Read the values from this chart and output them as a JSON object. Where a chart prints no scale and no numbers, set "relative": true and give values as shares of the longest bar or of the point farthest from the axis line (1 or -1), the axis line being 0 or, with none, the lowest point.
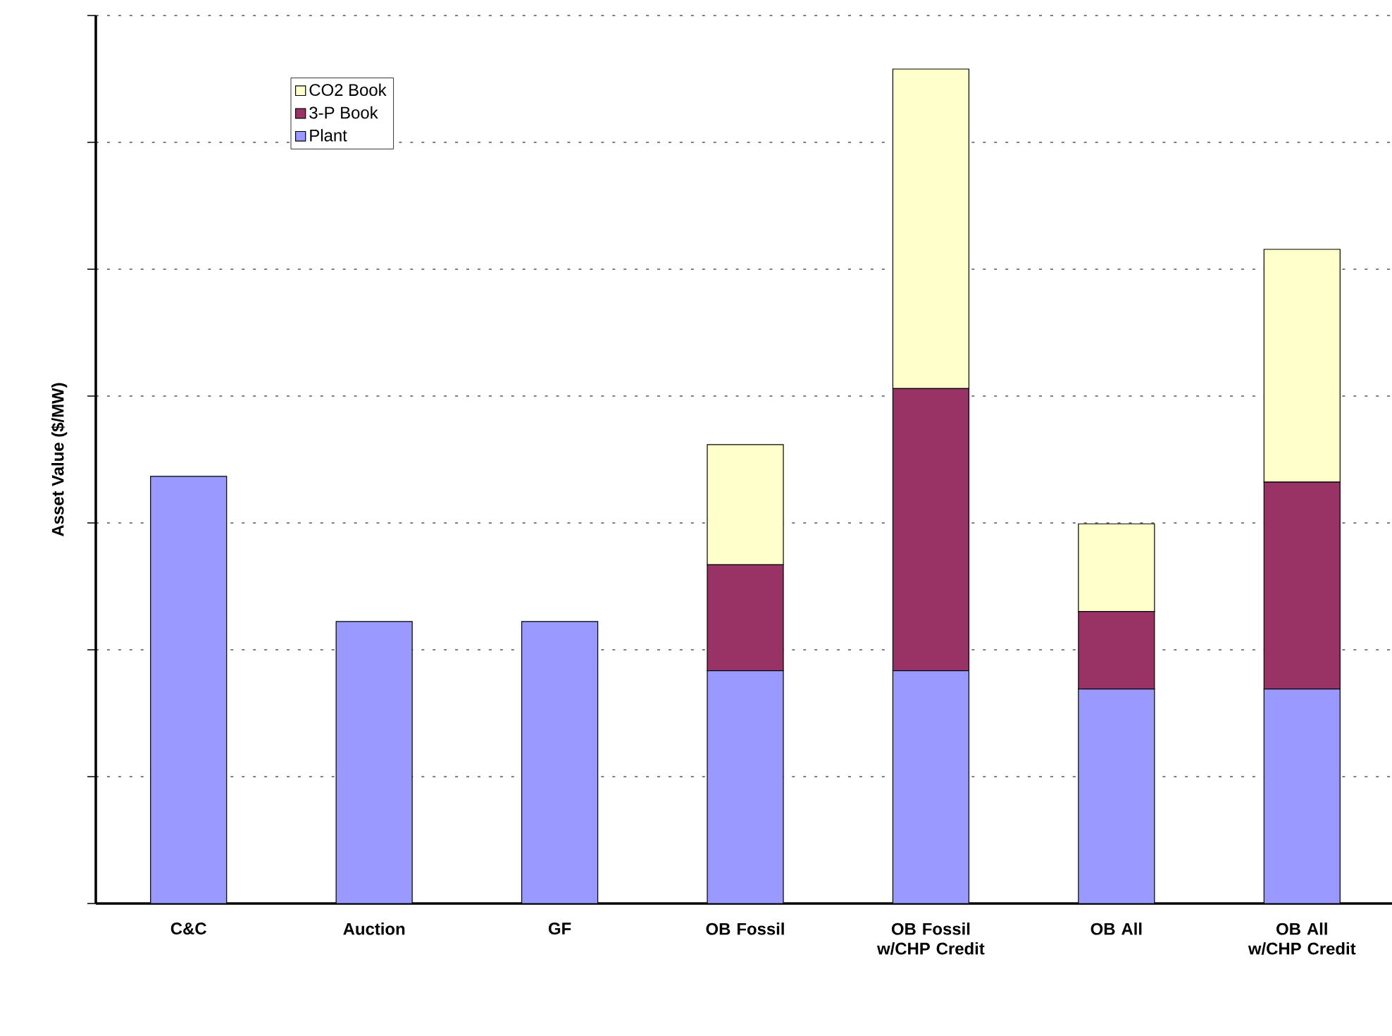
{
  "chart_data": {
    "type": "bar",
    "stacked": true,
    "relative": true,
    "ylabel": "Asset Value ($/MW)",
    "categories": [
      "C&C",
      "Auction",
      "GF",
      "OB Fossil",
      "OB Fossil w/CHP Credit",
      "OB All",
      "OB All w/CHP Credit"
    ],
    "series": [
      {
        "name": "Plant",
        "color": "#9999ff",
        "values": [
          0.512,
          0.338,
          0.338,
          0.279,
          0.279,
          0.257,
          0.257
        ]
      },
      {
        "name": "3-P Book",
        "color": "#993366",
        "values": [
          0,
          0,
          0,
          0.127,
          0.338,
          0.093,
          0.248
        ]
      },
      {
        "name": "CO2 Book",
        "color": "#ffffcc",
        "values": [
          0,
          0,
          0,
          0.144,
          0.383,
          0.105,
          0.279
        ]
      }
    ],
    "grid": "y",
    "legend": "top left"
  }
}
